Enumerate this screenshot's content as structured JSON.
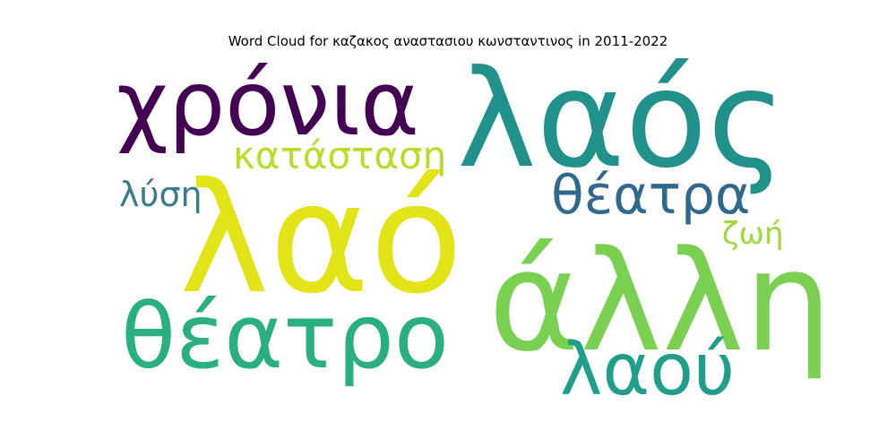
{
  "chart_data": {
    "type": "wordcloud",
    "title": "Word Cloud for καζακος αναστασιου κωνσταντινος in 2011-2022",
    "words": [
      {
        "text": "λαός",
        "color": "#21918c"
      },
      {
        "text": "λαό",
        "color": "#e2e418"
      },
      {
        "text": "χρόνια",
        "color": "#440154"
      },
      {
        "text": "άλλη",
        "color": "#7ad151"
      },
      {
        "text": "θέατρο",
        "color": "#2ab07f"
      },
      {
        "text": "λαού",
        "color": "#1f9e89"
      },
      {
        "text": "θέατρα",
        "color": "#31688e"
      },
      {
        "text": "κατάσταση",
        "color": "#b5de2b"
      },
      {
        "text": "λύση",
        "color": "#3b7c8c"
      },
      {
        "text": "ζωή",
        "color": "#a0da39"
      }
    ]
  }
}
